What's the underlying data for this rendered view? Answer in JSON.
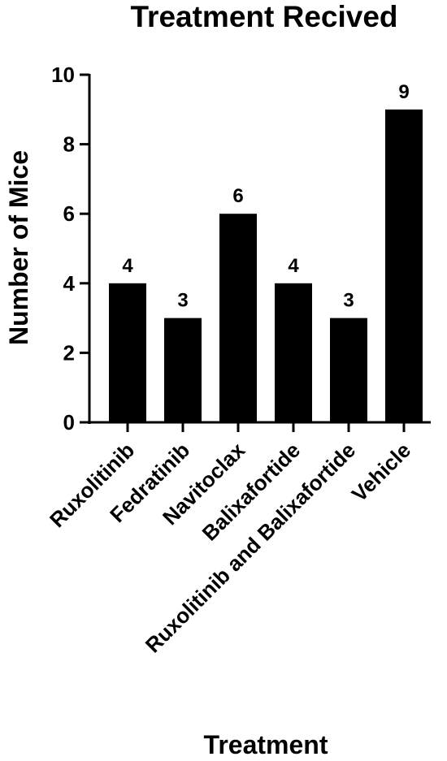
{
  "chart_data": {
    "type": "bar",
    "title": "Treatment Recived",
    "xlabel": "Treatment",
    "ylabel": "Number of Mice",
    "categories": [
      "Ruxolitinib",
      "Fedratinib",
      "Navitoclax",
      "Balixafortide",
      "Ruxolitinib and Balixafortide",
      "Vehicle"
    ],
    "values": [
      4,
      3,
      6,
      4,
      3,
      9
    ],
    "data_labels": [
      "4",
      "3",
      "6",
      "4",
      "3",
      "9"
    ],
    "ylim": [
      0,
      10
    ],
    "yticks": [
      0,
      2,
      4,
      6,
      8,
      10
    ],
    "grid": false,
    "legend": "none",
    "bar_color": "#000000"
  }
}
